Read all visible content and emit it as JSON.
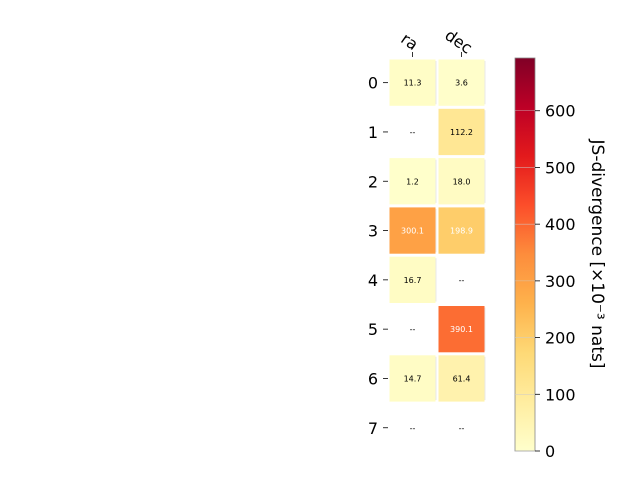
{
  "chart_data": {
    "type": "heatmap",
    "title": "",
    "columns": [
      "ra",
      "dec"
    ],
    "rows": [
      "0",
      "1",
      "2",
      "3",
      "4",
      "5",
      "6",
      "7"
    ],
    "values": [
      [
        11.3,
        3.6
      ],
      [
        null,
        112.2
      ],
      [
        1.2,
        18.0
      ],
      [
        300.1,
        198.9
      ],
      [
        16.7,
        null
      ],
      [
        null,
        390.1
      ],
      [
        14.7,
        61.4
      ],
      [
        null,
        null
      ]
    ],
    "cell_labels": [
      [
        "11.3",
        "3.6"
      ],
      [
        "--",
        "112.2"
      ],
      [
        "1.2",
        "18.0"
      ],
      [
        "300.1",
        "198.9"
      ],
      [
        "16.7",
        "--"
      ],
      [
        "--",
        "390.1"
      ],
      [
        "14.7",
        "61.4"
      ],
      [
        "--",
        "--"
      ]
    ],
    "missing_label": "--",
    "colorbar": {
      "label": "JS-divergence [×10⁻³ nats]",
      "range": [
        0,
        693
      ],
      "ticks": [
        0,
        100,
        200,
        300,
        400,
        500,
        600
      ],
      "colormap": "YlOrRd"
    },
    "colormap_stops": [
      "#ffffcc",
      "#ffeda0",
      "#fed976",
      "#feb24c",
      "#fd8d3c",
      "#fc4e2a",
      "#e31a1c",
      "#bd0026",
      "#800026"
    ]
  }
}
